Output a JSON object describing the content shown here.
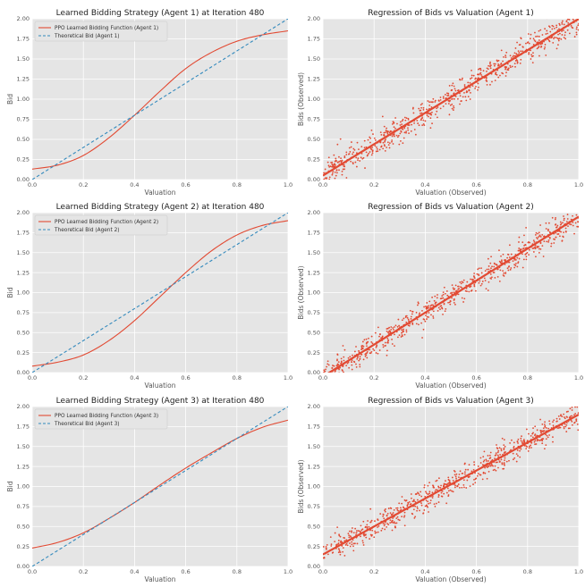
{
  "colors": {
    "red": "#e24a33",
    "blue": "#348abd",
    "background": "#e5e5e5",
    "grid": "#ffffff"
  },
  "chart_data": [
    {
      "type": "line",
      "title": "Learned Bidding Strategy (Agent 1) at Iteration 480",
      "xlabel": "Valuation",
      "ylabel": "Bid",
      "xlim": [
        0,
        1
      ],
      "ylim": [
        0,
        2
      ],
      "xticks": [
        "0.0",
        "0.2",
        "0.4",
        "0.6",
        "0.8",
        "1.0"
      ],
      "yticks": [
        "0.00",
        "0.25",
        "0.50",
        "0.75",
        "1.00",
        "1.25",
        "1.50",
        "1.75",
        "2.00"
      ],
      "legend_position": "top-left",
      "series": [
        {
          "name": "PPO Learned Bidding Function (Agent 1)",
          "style": "solid",
          "color": "#e24a33",
          "x": [
            0,
            0.1,
            0.2,
            0.3,
            0.4,
            0.5,
            0.6,
            0.7,
            0.8,
            0.9,
            1.0
          ],
          "y": [
            0.13,
            0.18,
            0.3,
            0.52,
            0.8,
            1.1,
            1.38,
            1.58,
            1.72,
            1.8,
            1.85
          ]
        },
        {
          "name": "Theoretical Bid (Agent 1)",
          "style": "dashed",
          "color": "#348abd",
          "x": [
            0,
            1
          ],
          "y": [
            0,
            2
          ]
        }
      ]
    },
    {
      "type": "scatter",
      "title": "Regression of Bids vs Valuation (Agent 1)",
      "xlabel": "Valuation (Observed)",
      "ylabel": "Bids (Observed)",
      "xlim": [
        0,
        1
      ],
      "ylim": [
        0,
        2
      ],
      "xticks": [
        "0.0",
        "0.2",
        "0.4",
        "0.6",
        "0.8",
        "1.0"
      ],
      "yticks": [
        "0.00",
        "0.25",
        "0.50",
        "0.75",
        "1.00",
        "1.25",
        "1.50",
        "1.75",
        "2.00"
      ],
      "regression": {
        "intercept": 0.05,
        "slope": 1.95
      },
      "scatter": {
        "count": 700,
        "noise": 0.09,
        "seed": 11
      }
    },
    {
      "type": "line",
      "title": "Learned Bidding Strategy (Agent 2) at Iteration 480",
      "xlabel": "Valuation",
      "ylabel": "Bid",
      "xlim": [
        0,
        1
      ],
      "ylim": [
        0,
        2
      ],
      "xticks": [
        "0.0",
        "0.2",
        "0.4",
        "0.6",
        "0.8",
        "1.0"
      ],
      "yticks": [
        "0.00",
        "0.25",
        "0.50",
        "0.75",
        "1.00",
        "1.25",
        "1.50",
        "1.75",
        "2.00"
      ],
      "legend_position": "top-left",
      "series": [
        {
          "name": "PPO Learned Bidding Function (Agent 2)",
          "style": "solid",
          "color": "#e24a33",
          "x": [
            0,
            0.1,
            0.2,
            0.3,
            0.4,
            0.5,
            0.6,
            0.7,
            0.8,
            0.9,
            1.0
          ],
          "y": [
            0.08,
            0.13,
            0.22,
            0.4,
            0.65,
            0.95,
            1.25,
            1.52,
            1.72,
            1.84,
            1.9
          ]
        },
        {
          "name": "Theoretical Bid (Agent 2)",
          "style": "dashed",
          "color": "#348abd",
          "x": [
            0,
            1
          ],
          "y": [
            0,
            2
          ]
        }
      ]
    },
    {
      "type": "scatter",
      "title": "Regression of Bids vs Valuation (Agent 2)",
      "xlabel": "Valuation (Observed)",
      "ylabel": "Bids (Observed)",
      "xlim": [
        0,
        1
      ],
      "ylim": [
        0,
        2
      ],
      "xticks": [
        "0.0",
        "0.2",
        "0.4",
        "0.6",
        "0.8",
        "1.0"
      ],
      "yticks": [
        "0.00",
        "0.25",
        "0.50",
        "0.75",
        "1.00",
        "1.25",
        "1.50",
        "1.75",
        "2.00"
      ],
      "regression": {
        "intercept": -0.05,
        "slope": 2.0
      },
      "scatter": {
        "count": 700,
        "noise": 0.08,
        "seed": 23
      }
    },
    {
      "type": "line",
      "title": "Learned Bidding Strategy (Agent 3) at Iteration 480",
      "xlabel": "Valuation",
      "ylabel": "Bid",
      "xlim": [
        0,
        1
      ],
      "ylim": [
        0,
        2
      ],
      "xticks": [
        "0.0",
        "0.2",
        "0.4",
        "0.6",
        "0.8",
        "1.0"
      ],
      "yticks": [
        "0.00",
        "0.25",
        "0.50",
        "0.75",
        "1.00",
        "1.25",
        "1.50",
        "1.75",
        "2.00"
      ],
      "legend_position": "top-left",
      "series": [
        {
          "name": "PPO Learned Bidding Function (Agent 3)",
          "style": "solid",
          "color": "#e24a33",
          "x": [
            0,
            0.1,
            0.2,
            0.3,
            0.4,
            0.5,
            0.6,
            0.7,
            0.8,
            0.9,
            1.0
          ],
          "y": [
            0.23,
            0.3,
            0.42,
            0.6,
            0.8,
            1.02,
            1.23,
            1.42,
            1.6,
            1.74,
            1.83
          ]
        },
        {
          "name": "Theoretical Bid (Agent 3)",
          "style": "dashed",
          "color": "#348abd",
          "x": [
            0,
            1
          ],
          "y": [
            0,
            2
          ]
        }
      ]
    },
    {
      "type": "scatter",
      "title": "Regression of Bids vs Valuation (Agent 3)",
      "xlabel": "Valuation (Observed)",
      "ylabel": "Bids (Observed)",
      "xlim": [
        0,
        1
      ],
      "ylim": [
        0,
        2
      ],
      "xticks": [
        "0.0",
        "0.2",
        "0.4",
        "0.6",
        "0.8",
        "1.0"
      ],
      "yticks": [
        "0.00",
        "0.25",
        "0.50",
        "0.75",
        "1.00",
        "1.25",
        "1.50",
        "1.75",
        "2.00"
      ],
      "regression": {
        "intercept": 0.15,
        "slope": 1.75
      },
      "scatter": {
        "count": 700,
        "noise": 0.08,
        "seed": 37
      }
    }
  ]
}
